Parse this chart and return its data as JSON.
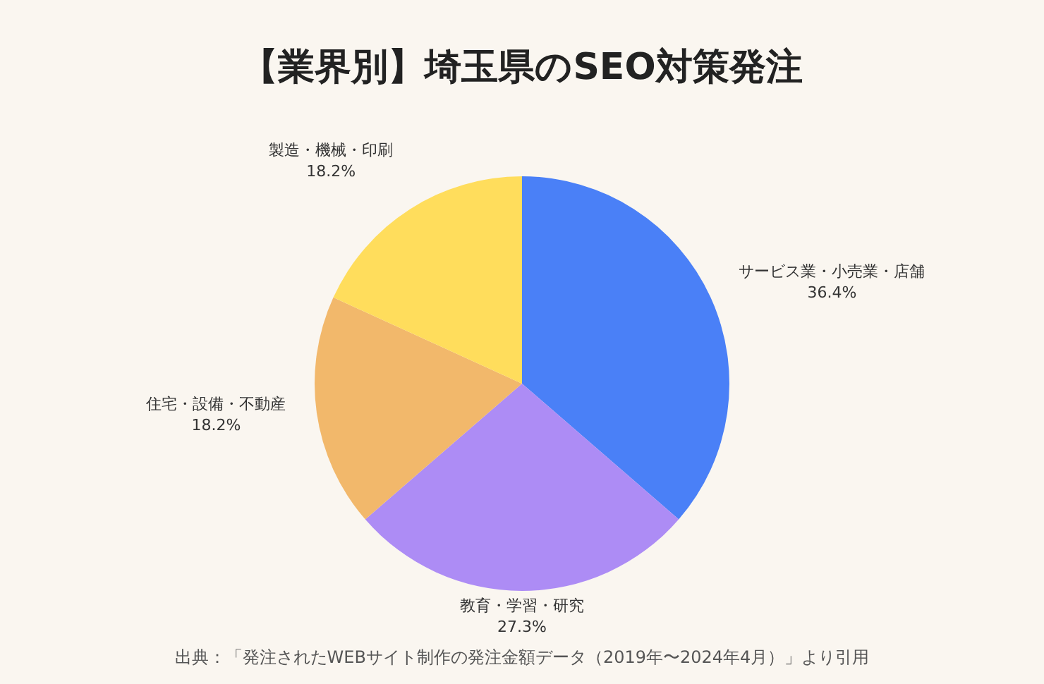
{
  "chart_data": {
    "type": "pie",
    "title": "【業界別】埼玉県のSEO対策発注",
    "categories": [
      "サービス業・小売業・店舗",
      "教育・学習・研究",
      "住宅・設備・不動産",
      "製造・機械・印刷"
    ],
    "values": [
      36.4,
      27.3,
      18.2,
      18.2
    ],
    "colors": [
      "#4a80f7",
      "#ad8cf5",
      "#f2b86b",
      "#ffdd5c"
    ],
    "value_labels": [
      "36.4%",
      "27.3%",
      "18.2%",
      "18.2%"
    ],
    "annotations": [
      "出典：「発注されたWEBサイト制作の発注金額データ（2019年〜2024年4月）」より引用"
    ]
  }
}
